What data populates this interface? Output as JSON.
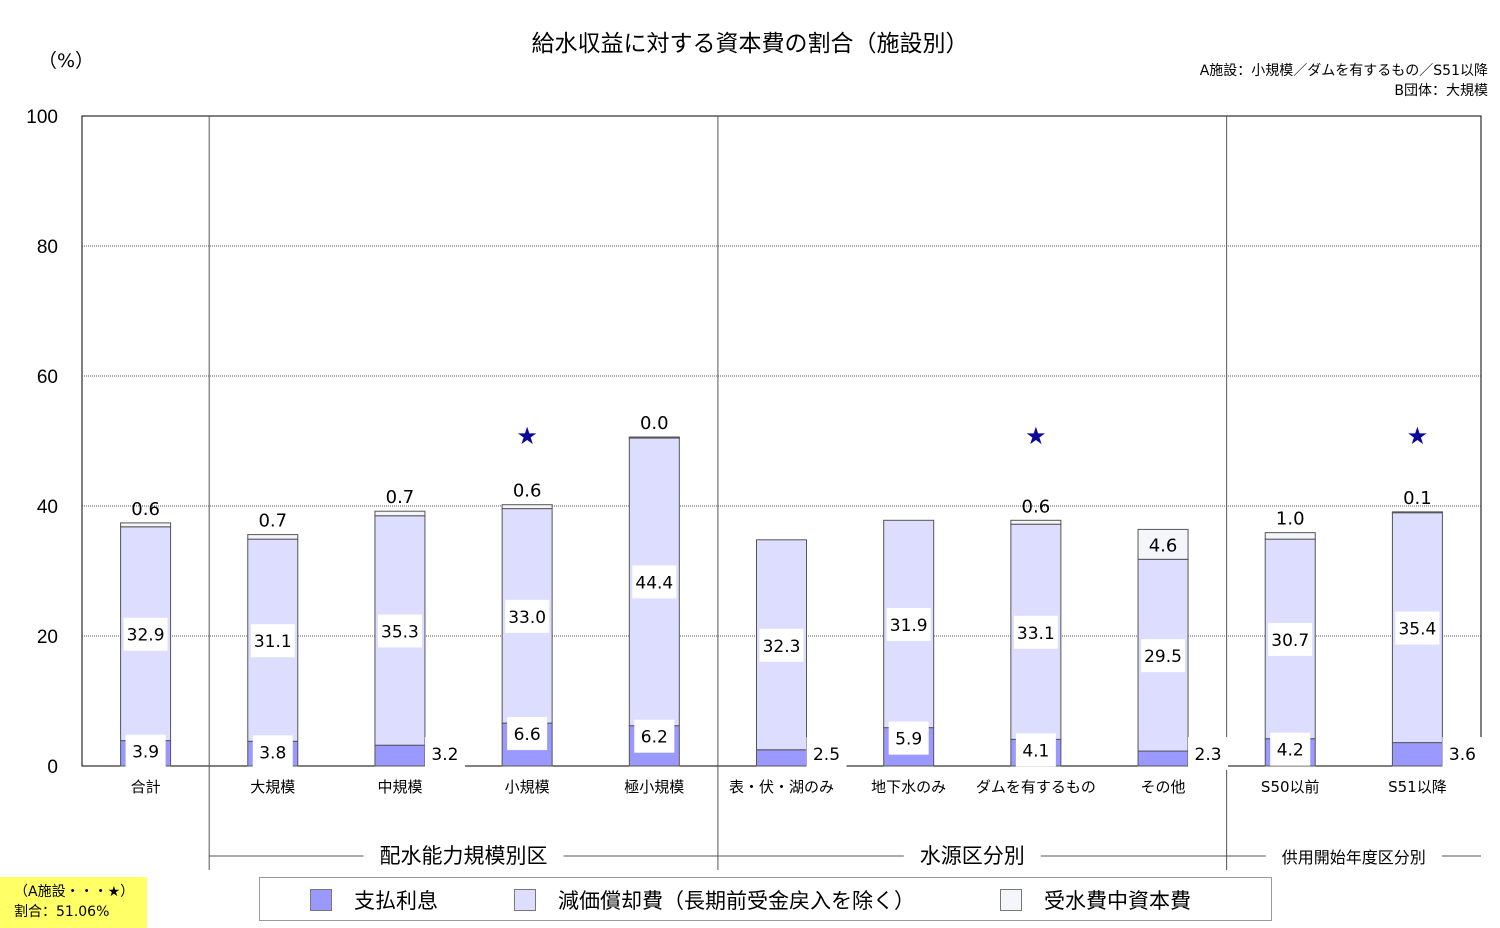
{
  "chart_data": {
    "type": "bar",
    "stacked": true,
    "title": "給水収益に対する資本費の割合（施設別）",
    "unit_label": "（%）",
    "ylim": [
      0,
      100
    ],
    "yticks": [
      "0",
      "20",
      "40",
      "60",
      "80",
      "100"
    ],
    "grid": true,
    "categories": [
      "合計",
      "大規模",
      "中規模",
      "小規模",
      "極小規模",
      "表・伏・湖のみ",
      "地下水のみ",
      "ダムを有するもの",
      "その他",
      "S50以前",
      "S51以降"
    ],
    "series": [
      {
        "name": "支払利息",
        "values": [
          3.9,
          3.8,
          3.2,
          6.6,
          6.2,
          2.5,
          5.9,
          4.1,
          2.3,
          4.2,
          3.6
        ],
        "color": "#9999ff"
      },
      {
        "name": "減価償却費（長期前受金戻入を除く）",
        "values": [
          32.9,
          31.1,
          35.3,
          33.0,
          44.4,
          32.3,
          31.9,
          33.1,
          29.5,
          30.7,
          35.4
        ],
        "color": "#ddddff"
      },
      {
        "name": "受水費中資本費",
        "values": [
          0.6,
          0.7,
          0.7,
          0.6,
          0.0,
          null,
          null,
          0.6,
          4.6,
          1.0,
          0.1
        ],
        "color": "#f4f6fb"
      }
    ],
    "value_labels": {
      "interest": [
        "3.9",
        "3.8",
        "3.2",
        "6.6",
        "6.2",
        "2.5",
        "5.9",
        "4.1",
        "2.3",
        "4.2",
        "3.6"
      ],
      "depreciation": [
        "32.9",
        "31.1",
        "35.3",
        "33.0",
        "44.4",
        "32.3",
        "31.9",
        "33.1",
        "29.5",
        "30.7",
        "35.4"
      ],
      "purchased": [
        "0.6",
        "0.7",
        "0.7",
        "0.6",
        "0.0",
        "",
        "",
        "0.6",
        "4.6",
        "1.0",
        "0.1"
      ]
    },
    "star_marker": "★",
    "star_values": [
      null,
      null,
      null,
      51.06,
      null,
      null,
      null,
      51.06,
      null,
      null,
      51.06
    ],
    "star_color": "#0a0a9a",
    "groups": [
      {
        "label": "配水能力規模別区",
        "from": 1,
        "to": 4
      },
      {
        "label": "水源区分別",
        "from": 5,
        "to": 8
      },
      {
        "label": "供用開始年度区分別",
        "from": 9,
        "to": 10
      }
    ]
  },
  "notes": {
    "line1": "A施設：小規模／ダムを有するもの／S51以降",
    "line2": "B団体：大規模"
  },
  "callout": {
    "line1": "（A施設・・・★）",
    "line2": "割合：51.06%"
  },
  "legend": [
    {
      "label": "支払利息",
      "color": "#9999ff"
    },
    {
      "label": "減価償却費（長期前受金戻入を除く）",
      "color": "#ddddff"
    },
    {
      "label": "受水費中資本費",
      "color": "#f4f6fb"
    }
  ]
}
